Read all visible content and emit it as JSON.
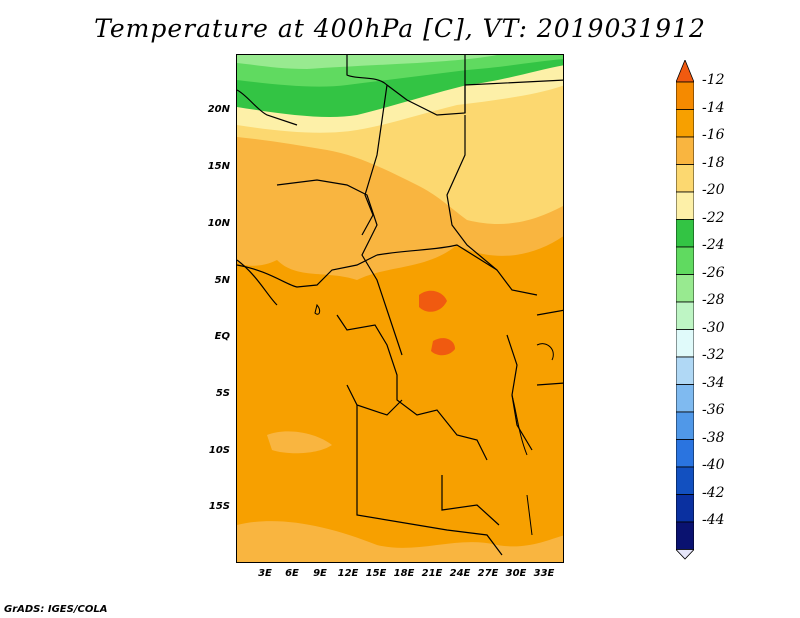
{
  "title": "Temperature at 400hPa [C], VT: 2019031912",
  "credit": "GrADS: IGES/COLA",
  "lat_ticks": [
    "20N",
    "15N",
    "10N",
    "5N",
    "EQ",
    "5S",
    "10S",
    "15S"
  ],
  "lon_ticks": [
    "3E",
    "6E",
    "9E",
    "12E",
    "15E",
    "18E",
    "21E",
    "24E",
    "27E",
    "30E",
    "33E"
  ],
  "colorbar": {
    "labels": [
      "-12",
      "-14",
      "-16",
      "-18",
      "-20",
      "-22",
      "-24",
      "-26",
      "-28",
      "-30",
      "-32",
      "-34",
      "-36",
      "-38",
      "-40",
      "-42",
      "-44"
    ],
    "colors": [
      "#f05a10",
      "#f58a00",
      "#f7a000",
      "#f9b540",
      "#fcd870",
      "#fdf0a8",
      "#33c444",
      "#60da60",
      "#98ea90",
      "#bef5c4",
      "#e0fafa",
      "#b0d8f5",
      "#7fbaf0",
      "#5098e8",
      "#2a74e0",
      "#1250c0",
      "#0a30a0",
      "#0a1270",
      "#e6e6fa"
    ]
  },
  "legend_colors": {
    "-12_plus": "#f05a10",
    "-12_-14": "#f58a00",
    "-14_-16": "#f7a000",
    "-16_-18": "#f9b540",
    "-18_-20": "#fcd870",
    "-20_-22": "#fdf0a8",
    "-22_-24": "#33c444",
    "-24_-26": "#60da60",
    "-26_-28": "#98ea90",
    "-28_-30": "#bef5c4"
  }
}
